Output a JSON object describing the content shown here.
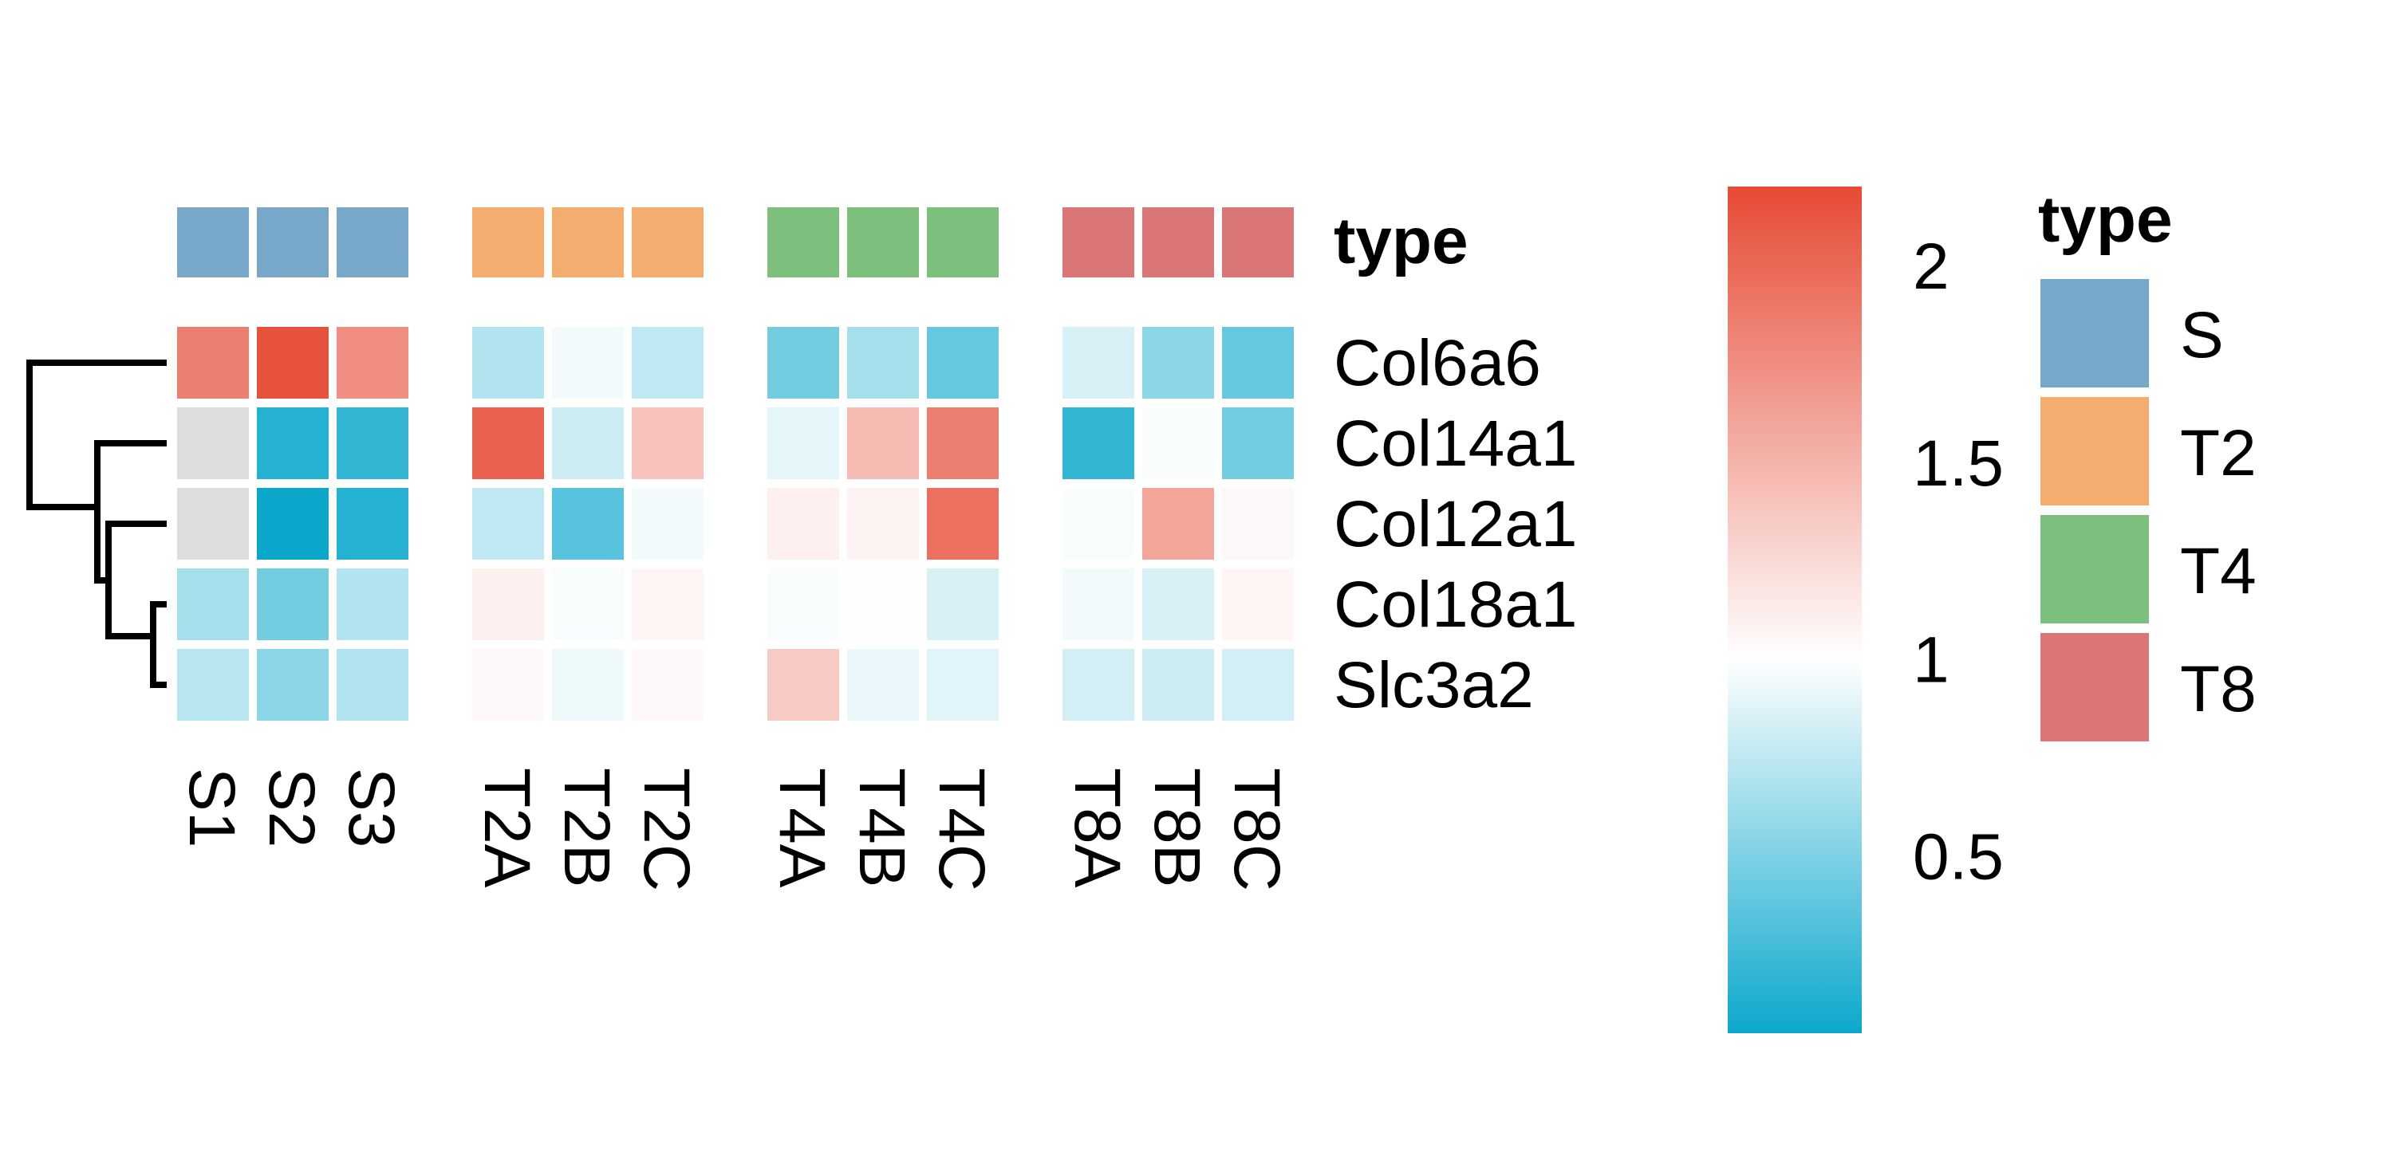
{
  "chart_data": {
    "type": "heatmap",
    "annotation_title": "type",
    "rows": [
      "Col6a6",
      "Col14a1",
      "Col12a1",
      "Col18a1",
      "Slc3a2"
    ],
    "columns": [
      "S1",
      "S2",
      "S3",
      "T2A",
      "T2B",
      "T2C",
      "T4A",
      "T4B",
      "T4C",
      "T8A",
      "T8B",
      "T8C"
    ],
    "column_groups": [
      "S",
      "S",
      "S",
      "T2",
      "T2",
      "T2",
      "T4",
      "T4",
      "T4",
      "T8",
      "T8",
      "T8"
    ],
    "values": [
      [
        1.85,
        2.15,
        1.75,
        0.7,
        0.95,
        0.75,
        0.45,
        0.65,
        0.4,
        0.85,
        0.55,
        0.4
      ],
      [
        null,
        0.15,
        0.2,
        2.05,
        0.8,
        1.4,
        0.9,
        1.45,
        1.85,
        0.2,
        0.98,
        0.45
      ],
      [
        null,
        0.05,
        0.15,
        0.75,
        0.35,
        0.95,
        1.1,
        1.08,
        1.95,
        0.98,
        1.6,
        1.04
      ],
      [
        0.65,
        0.45,
        0.7,
        1.1,
        0.97,
        1.06,
        0.98,
        1.01,
        0.85,
        0.95,
        0.85,
        1.06
      ],
      [
        0.72,
        0.55,
        0.7,
        1.04,
        0.93,
        1.04,
        1.35,
        0.92,
        0.88,
        0.82,
        0.8,
        0.82
      ]
    ],
    "legend": {
      "colorbar": {
        "ticks": [
          0.5,
          1,
          1.5,
          2
        ],
        "min": 0.05,
        "max": 2.2
      },
      "type_title": "type",
      "type_entries": [
        {
          "label": "S",
          "color": "#77a7c9"
        },
        {
          "label": "T2",
          "color": "#f4ad6e"
        },
        {
          "label": "T4",
          "color": "#7dbf7c"
        },
        {
          "label": "T8",
          "color": "#db7676"
        }
      ]
    },
    "colors": {
      "low": "#0ba8cc",
      "mid": "#ffffff",
      "high": "#e64a35",
      "na": "#dddddd"
    },
    "dendrogram": "rows"
  }
}
